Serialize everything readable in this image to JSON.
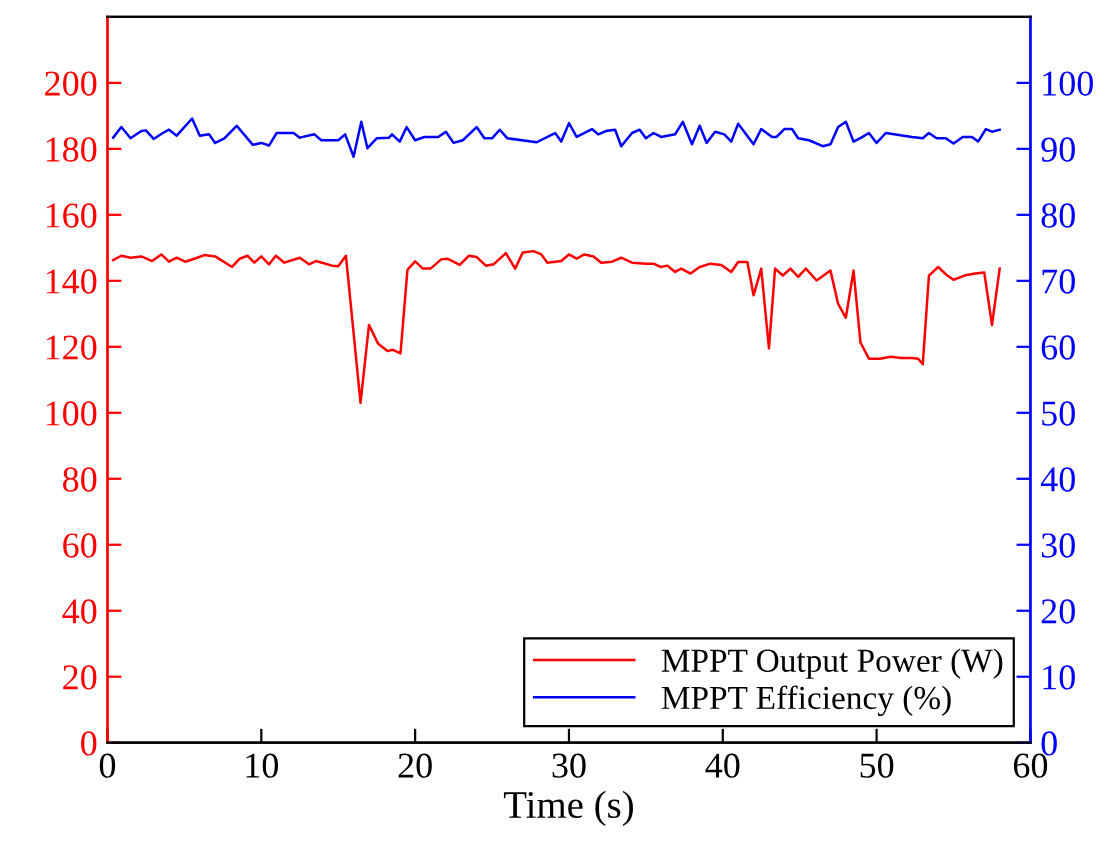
{
  "chart_data": {
    "type": "line",
    "xlabel": "Time (s)",
    "xlim": [
      0,
      60
    ],
    "xticks": [
      0,
      10,
      20,
      30,
      40,
      50,
      60
    ],
    "ylim": [
      0,
      220
    ],
    "yticks": [
      0,
      20,
      40,
      60,
      80,
      100,
      120,
      140,
      160,
      180,
      200
    ],
    "y2lim": [
      0,
      110
    ],
    "y2ticks": [
      0,
      10,
      20,
      30,
      40,
      50,
      60,
      70,
      80,
      90,
      100
    ],
    "grid": false,
    "legend": "bottom right",
    "marker": "none",
    "line_style": "solid",
    "series": [
      {
        "name": "MPPT Output Power (W)",
        "color": "#ff0000",
        "axis": "y",
        "x": [
          0.37,
          0.9,
          1.5,
          2.2,
          2.9,
          3.5,
          4.0,
          4.5,
          5.05,
          5.65,
          6.3,
          7.0,
          8.1,
          8.6,
          9.1,
          9.55,
          10.0,
          10.5,
          10.95,
          11.5,
          12.5,
          13.1,
          13.55,
          14.6,
          15.0,
          15.5,
          16.45,
          17.0,
          17.6,
          18.2,
          18.55,
          19.05,
          19.5,
          20.0,
          20.5,
          21.0,
          21.7,
          22.1,
          22.9,
          23.5,
          24.0,
          24.6,
          25.1,
          25.9,
          26.5,
          27.0,
          27.7,
          28.2,
          28.6,
          29.5,
          30.0,
          30.5,
          31.0,
          31.6,
          32.1,
          32.8,
          33.4,
          34.1,
          35.0,
          35.5,
          35.95,
          36.4,
          36.9,
          37.3,
          37.9,
          38.5,
          39.2,
          39.9,
          40.55,
          41.0,
          41.6,
          42.0,
          42.5,
          43.0,
          43.4,
          43.9,
          44.4,
          44.9,
          45.4,
          46.1,
          47.0,
          47.5,
          48.0,
          48.5,
          48.95,
          49.5,
          50.2,
          50.9,
          51.6,
          52.3,
          52.7,
          53.0,
          53.4,
          54.0,
          54.6,
          55.0,
          55.7,
          56.4,
          57.0,
          57.5,
          58.0
        ],
        "values": [
          146.3,
          147.6,
          147,
          147.4,
          146,
          148,
          145.8,
          147,
          145.8,
          146.7,
          147.8,
          147.4,
          144.2,
          146.7,
          147.6,
          145.5,
          147.4,
          145,
          147.6,
          145.5,
          147,
          145,
          146,
          144.6,
          144.4,
          147.6,
          103,
          126.6,
          120.9,
          118.7,
          119.1,
          118,
          143.3,
          145.9,
          143.7,
          143.7,
          146.5,
          146.7,
          144.8,
          147.6,
          147.2,
          144.6,
          145,
          148.4,
          143.7,
          148.6,
          149,
          148,
          145.5,
          146,
          148,
          146.7,
          148,
          147.4,
          145.5,
          145.8,
          147,
          145.5,
          145.2,
          145.2,
          144.2,
          144.6,
          142.7,
          143.7,
          142.2,
          144.2,
          145.2,
          144.8,
          142.7,
          145.7,
          145.7,
          135.6,
          143.7,
          119.5,
          143.7,
          141.6,
          143.7,
          141.2,
          143.7,
          140.1,
          143.1,
          133,
          128.8,
          143.1,
          121.3,
          116.4,
          116.4,
          117,
          116.6,
          116.6,
          116.4,
          114.7,
          141.6,
          144.2,
          141.6,
          140.3,
          141.6,
          142.2,
          142.5,
          126.6,
          143.7
        ]
      },
      {
        "name": "MPPT Efficiency (%)",
        "color": "#0000ff",
        "axis": "y2",
        "x": [
          0.37,
          0.9,
          1.5,
          2.2,
          2.5,
          3.0,
          3.6,
          4.0,
          4.5,
          5.5,
          6.0,
          6.6,
          7.0,
          7.6,
          8.4,
          9.45,
          10.0,
          10.5,
          11.0,
          12.1,
          12.5,
          13.45,
          13.9,
          15.0,
          15.45,
          16.0,
          16.5,
          16.9,
          17.5,
          18.3,
          18.5,
          19.0,
          19.45,
          20.0,
          20.6,
          21.5,
          22.0,
          22.5,
          23.1,
          24.0,
          24.5,
          25.0,
          25.5,
          26.0,
          27.9,
          29.1,
          29.5,
          30.0,
          30.5,
          31.5,
          31.9,
          32.4,
          33.0,
          33.4,
          34.1,
          34.6,
          35.0,
          35.5,
          36.0,
          36.9,
          37.4,
          38.0,
          38.5,
          38.95,
          39.5,
          40.1,
          40.55,
          41.0,
          42.0,
          42.5,
          43.2,
          43.5,
          44.0,
          44.5,
          44.9,
          45.6,
          46.5,
          47.0,
          47.5,
          48.0,
          48.5,
          49.0,
          49.5,
          50.0,
          50.6,
          52.3,
          53.0,
          53.4,
          53.9,
          54.5,
          55.0,
          55.6,
          56.2,
          56.6,
          57.1,
          57.5,
          58.0
        ],
        "values": [
          91.7,
          93.3,
          91.6,
          92.7,
          92.8,
          91.5,
          92.4,
          92.9,
          92,
          94.6,
          92,
          92.2,
          90.9,
          91.6,
          93.5,
          90.6,
          90.9,
          90.5,
          92.4,
          92.4,
          91.7,
          92.2,
          91.3,
          91.3,
          92.2,
          88.8,
          94.1,
          90.1,
          91.6,
          91.7,
          92.2,
          91.1,
          93.3,
          91.3,
          91.8,
          91.8,
          92.6,
          90.9,
          91.3,
          93.3,
          91.6,
          91.6,
          92.9,
          91.6,
          91,
          92.4,
          91.1,
          93.9,
          91.8,
          93,
          92.2,
          92.7,
          92.9,
          90.4,
          92.4,
          92.9,
          91.6,
          92.4,
          91.8,
          92.2,
          94.1,
          90.7,
          93.5,
          90.9,
          92.6,
          92.2,
          91.1,
          93.8,
          90.7,
          93,
          91.8,
          91.8,
          93,
          93,
          91.6,
          91.3,
          90.4,
          90.7,
          93.3,
          94.1,
          91.1,
          91.7,
          92.4,
          90.9,
          92.4,
          91.8,
          91.6,
          92.4,
          91.6,
          91.6,
          90.8,
          91.8,
          91.8,
          91.1,
          93,
          92.6,
          92.9
        ]
      }
    ]
  }
}
